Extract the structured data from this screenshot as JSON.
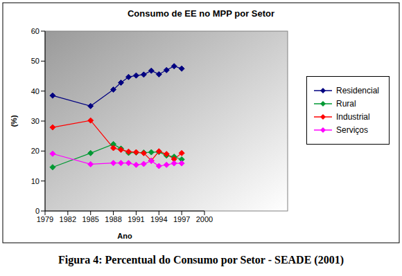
{
  "chart_data": {
    "type": "line",
    "title": "Consumo de EE no MPP por Setor",
    "subtitle": "Figura 4: Percentual do Consumo por Setor - SEADE (2001)",
    "x_label": "Ano",
    "y_label": "(%)",
    "x": [
      1980,
      1985,
      1988,
      1989,
      1990,
      1991,
      1992,
      1993,
      1994,
      1995,
      1996,
      1997
    ],
    "series": [
      {
        "name": "Residencial",
        "color": "#000080",
        "marker": "diamond",
        "values": [
          38.5,
          35,
          40.5,
          42.8,
          44.7,
          45.2,
          45.5,
          46.8,
          45.6,
          47,
          48.3,
          47.5
        ]
      },
      {
        "name": "Rural",
        "color": "#009933",
        "marker": "diamond",
        "values": [
          14.6,
          19.3,
          22.3,
          20.8,
          19.4,
          19.5,
          19.5,
          19.6,
          19.7,
          18.5,
          18.1,
          17.2
        ]
      },
      {
        "name": "Industrial",
        "color": "#ff0000",
        "marker": "diamond",
        "values": [
          27.9,
          30.2,
          21,
          20.4,
          19.8,
          19.6,
          19.3,
          16.8,
          19.9,
          19,
          17.3,
          19.3
        ]
      },
      {
        "name": "Serviços",
        "color": "#ff00ff",
        "marker": "diamond",
        "values": [
          19.1,
          15.6,
          16,
          16,
          16,
          15.4,
          15.7,
          16.7,
          15,
          15.4,
          15.9,
          15.9
        ]
      }
    ],
    "xlim": [
      1979,
      2000
    ],
    "xticks": [
      1979,
      1982,
      1985,
      1988,
      1991,
      1994,
      1997,
      2000
    ],
    "ylim": [
      0,
      60
    ],
    "yticks": [
      0,
      10,
      20,
      30,
      40,
      50,
      60
    ],
    "grid": false,
    "legend": "right"
  }
}
